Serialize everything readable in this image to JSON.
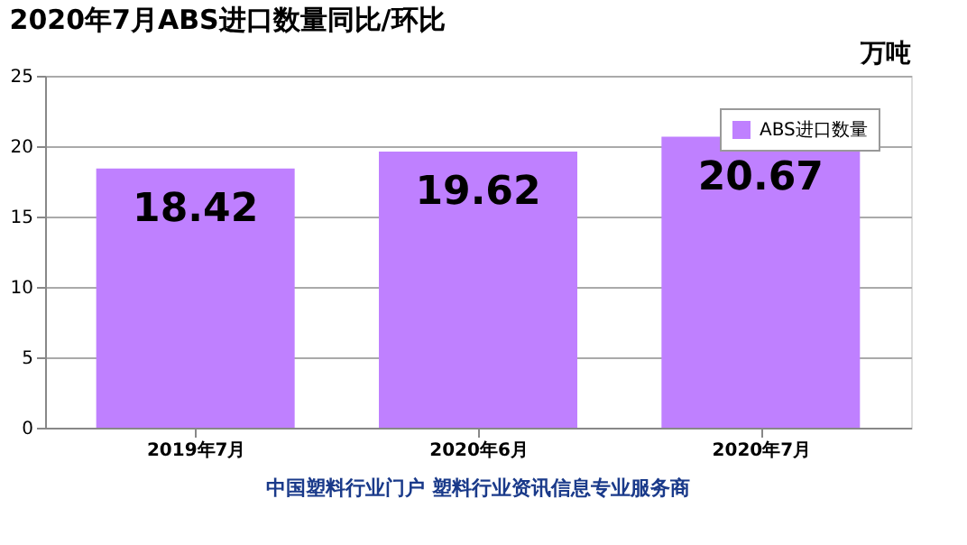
{
  "chart_data": {
    "type": "bar",
    "title": "2020年7月ABS进口数量同比/环比",
    "ylabel": "万吨",
    "categories": [
      "2019年7月",
      "2020年6月",
      "2020年7月"
    ],
    "series": [
      {
        "name": "ABS进口数量",
        "color": "#bf80ff",
        "values": [
          18.42,
          19.62,
          20.67
        ]
      }
    ],
    "ylim": [
      0,
      25
    ],
    "yticks": [
      0,
      5,
      10,
      15,
      20,
      25
    ],
    "grid": "y",
    "legend": "top right",
    "data_labels": true,
    "annotations": [
      "中国塑料行业门户 塑料行业资讯信息专业服务商"
    ]
  }
}
